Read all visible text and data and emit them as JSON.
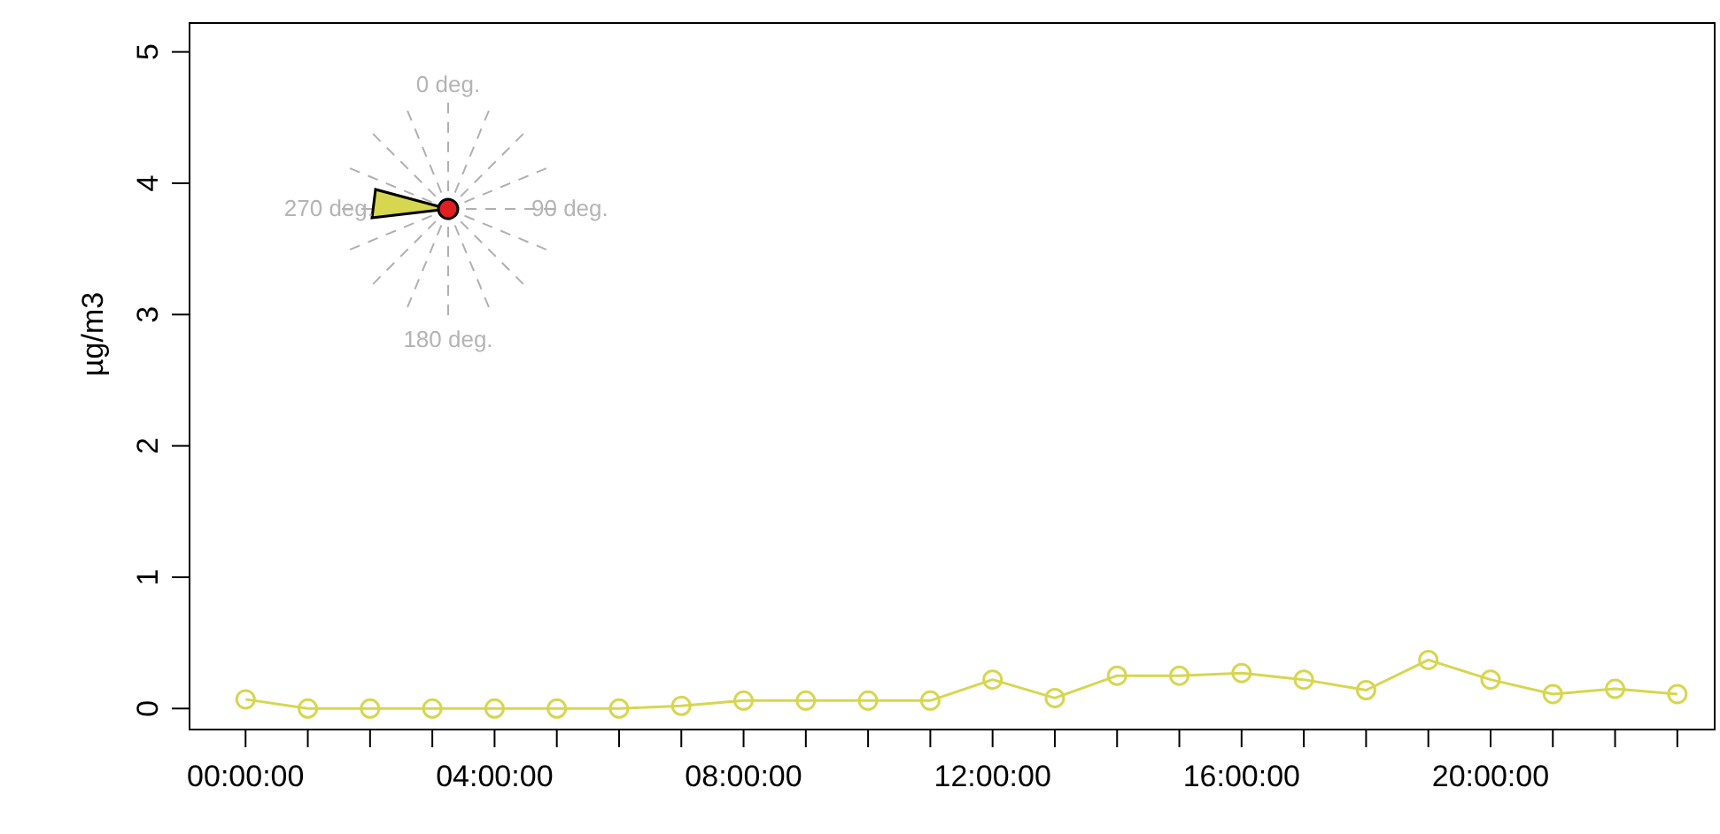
{
  "chart_data": {
    "type": "line",
    "ylabel": "µg/m3",
    "x": [
      0,
      1,
      2,
      3,
      4,
      5,
      6,
      7,
      8,
      9,
      10,
      11,
      12,
      13,
      14,
      15,
      16,
      17,
      18,
      19,
      20,
      21,
      22,
      23
    ],
    "series": [
      {
        "color": "#d6d650",
        "values": [
          0.07,
          0,
          0,
          0,
          0,
          0,
          0,
          0.02,
          0.06,
          0.06,
          0.06,
          0.06,
          0.22,
          0.08,
          0.25,
          0.25,
          0.27,
          0.22,
          0.14,
          0.37,
          0.22,
          0.11,
          0.15,
          0.11
        ]
      }
    ],
    "xlim": [
      -0.9,
      23.6
    ],
    "ylim": [
      -0.16,
      5.22
    ],
    "xticks": [
      {
        "value": 0,
        "label": "00:00:00"
      },
      {
        "value": 1,
        "label": null
      },
      {
        "value": 2,
        "label": null
      },
      {
        "value": 3,
        "label": null
      },
      {
        "value": 4,
        "label": "04:00:00"
      },
      {
        "value": 5,
        "label": null
      },
      {
        "value": 6,
        "label": null
      },
      {
        "value": 7,
        "label": null
      },
      {
        "value": 8,
        "label": "08:00:00"
      },
      {
        "value": 9,
        "label": null
      },
      {
        "value": 10,
        "label": null
      },
      {
        "value": 11,
        "label": null
      },
      {
        "value": 12,
        "label": "12:00:00"
      },
      {
        "value": 13,
        "label": null
      },
      {
        "value": 14,
        "label": null
      },
      {
        "value": 15,
        "label": null
      },
      {
        "value": 16,
        "label": "16:00:00"
      },
      {
        "value": 17,
        "label": null
      },
      {
        "value": 18,
        "label": null
      },
      {
        "value": 19,
        "label": null
      },
      {
        "value": 20,
        "label": "20:00:00"
      },
      {
        "value": 21,
        "label": null
      },
      {
        "value": 22,
        "label": null
      },
      {
        "value": 23,
        "label": null
      }
    ],
    "yticks": [
      0,
      1,
      2,
      3,
      4,
      5
    ],
    "marker": "circle",
    "line_style": "solid",
    "grid": false,
    "legend": false,
    "annotations": [
      "0 deg.",
      "90 deg.",
      "180 deg.",
      "270 deg."
    ]
  }
}
